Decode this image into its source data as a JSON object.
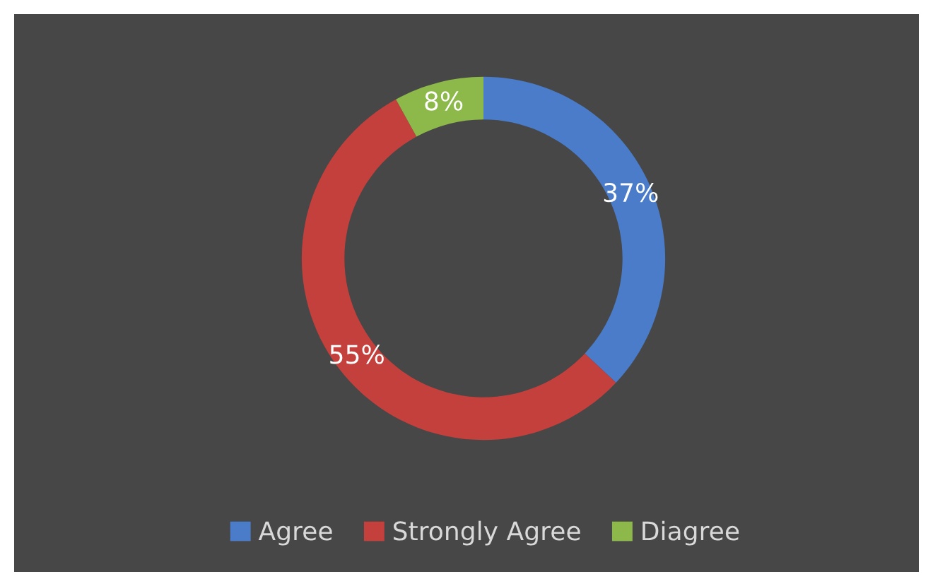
{
  "chart_data": {
    "type": "donut",
    "categories": [
      "Agree",
      "Strongly Agree",
      "Diagree"
    ],
    "values": [
      37,
      55,
      8
    ],
    "colors": [
      "#4a7cc9",
      "#c4403d",
      "#8db84a"
    ],
    "value_labels": [
      "37%",
      "55%",
      "8%"
    ],
    "legend": "bottom"
  }
}
